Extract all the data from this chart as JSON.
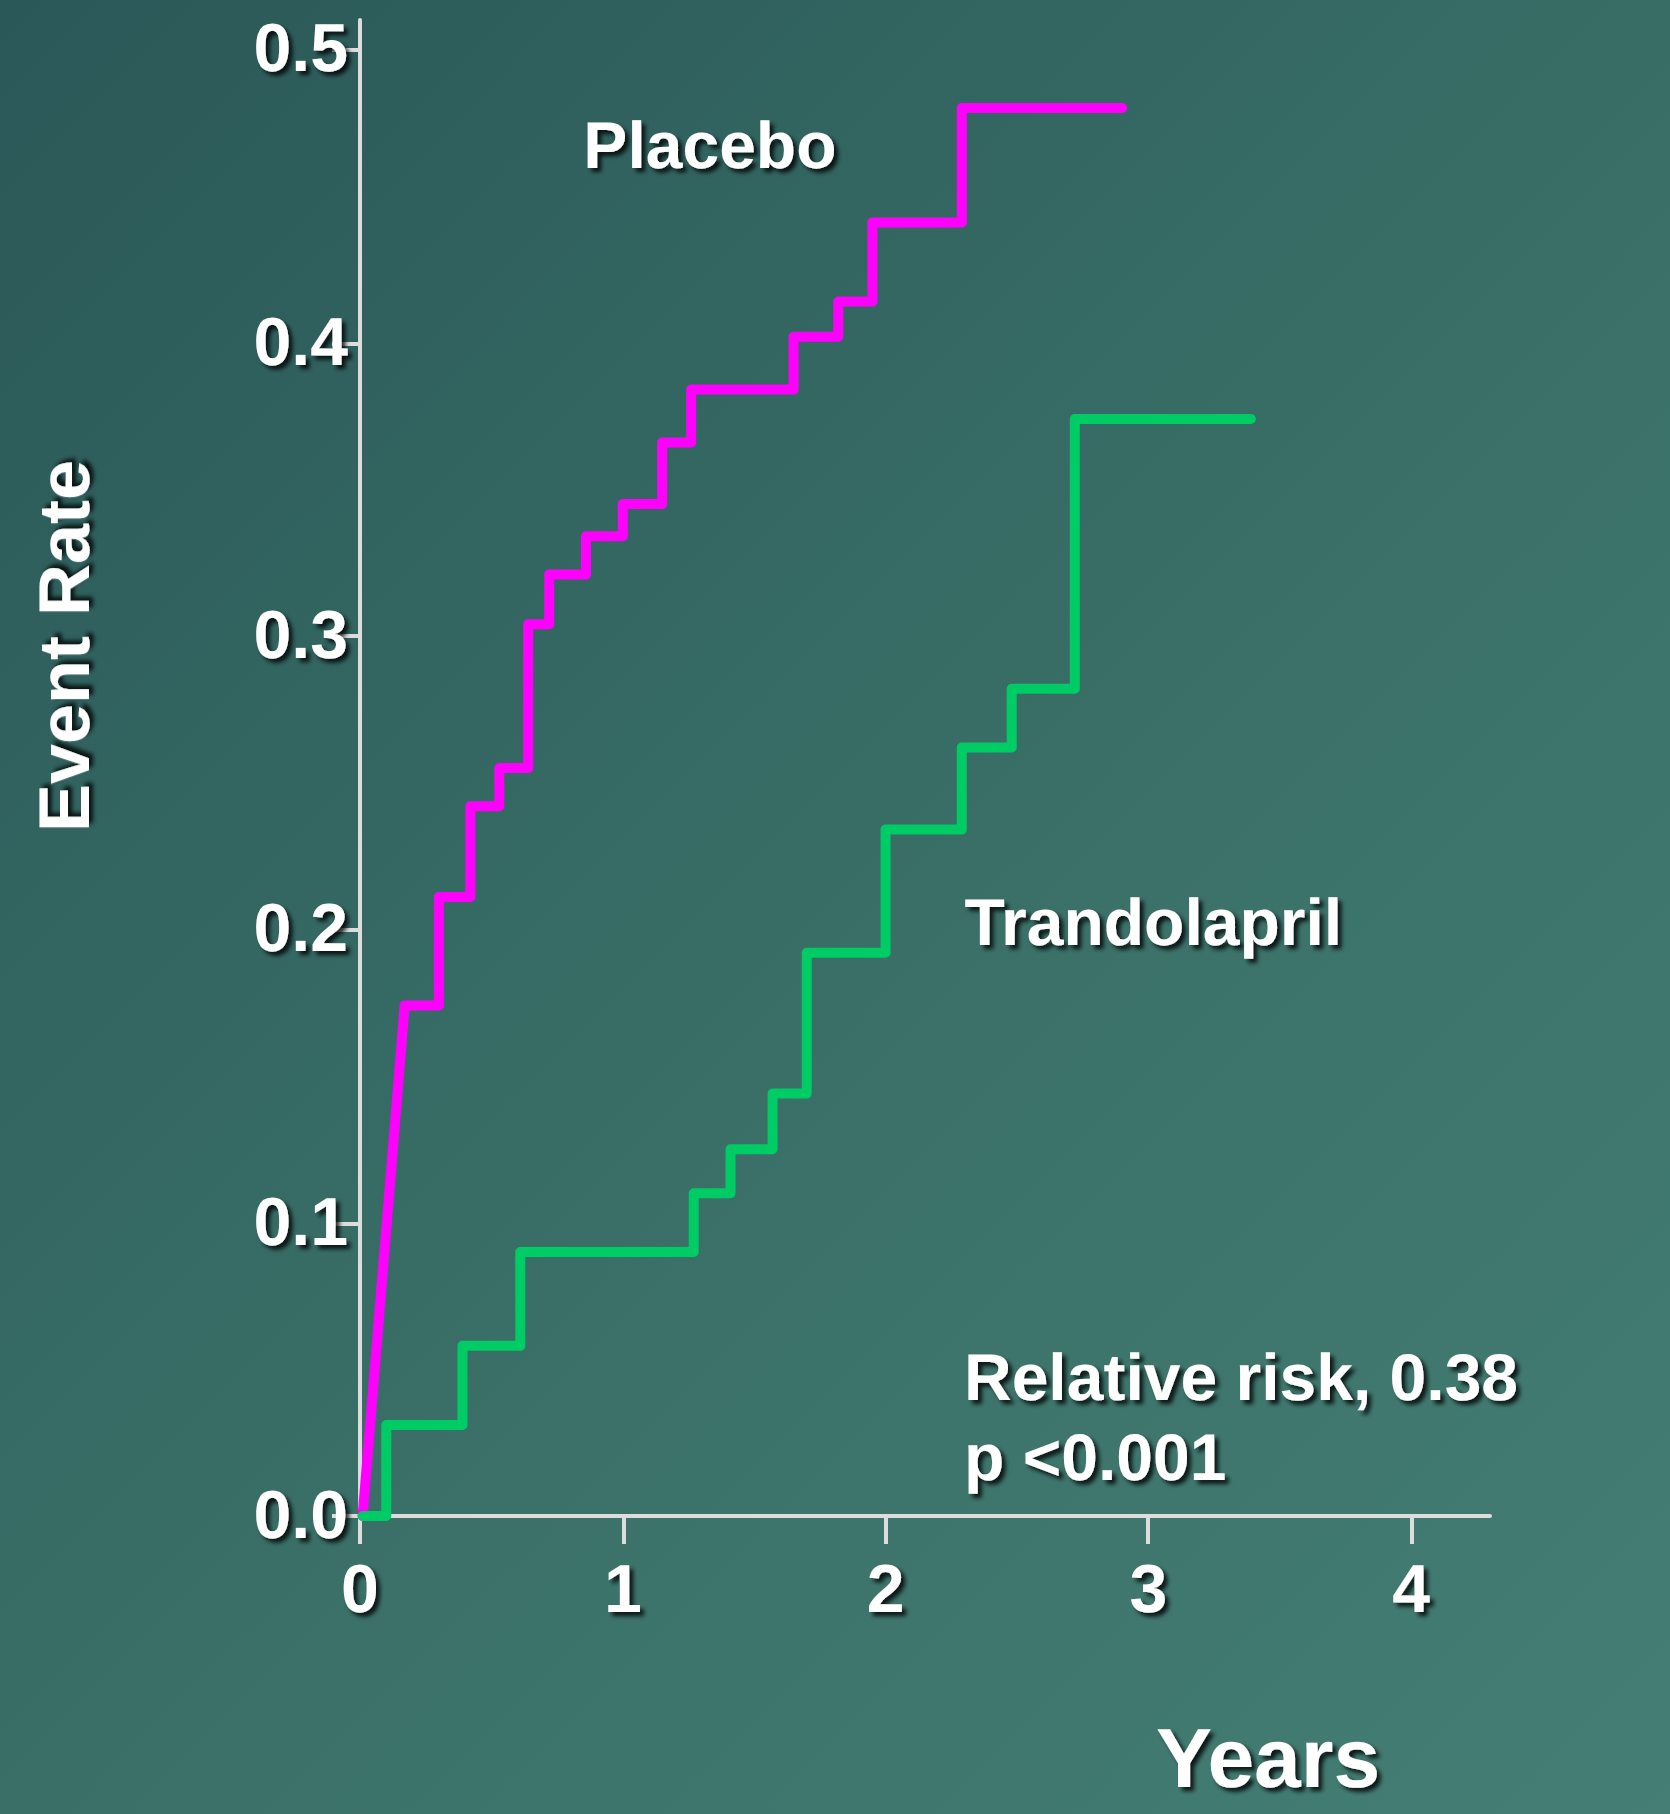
{
  "chart_data": {
    "type": "line",
    "xlabel": "Years",
    "ylabel": "Event Rate",
    "xlim": [
      0,
      4.3
    ],
    "ylim": [
      0,
      0.51
    ],
    "xticks": [
      0,
      1,
      2,
      3,
      4
    ],
    "yticks": [
      {
        "value": 0,
        "label": "0.0"
      },
      {
        "value": 0.1,
        "label": "0.1"
      },
      {
        "value": 0.2,
        "label": "0.2"
      },
      {
        "value": 0.3,
        "label": "0.3"
      },
      {
        "value": 0.4,
        "label": "0.4"
      },
      {
        "value": 0.5,
        "label": "0.5"
      }
    ],
    "grid": false,
    "legend": false,
    "marker": "none",
    "line_style": "solid",
    "series": [
      {
        "name": "Placebo",
        "color": "#ff00ff",
        "x": [
          0.01,
          0.17,
          0.3,
          0.3,
          0.42,
          0.42,
          0.53,
          0.53,
          0.64,
          0.64,
          0.72,
          0.72,
          0.86,
          0.86,
          1.0,
          1.0,
          1.15,
          1.15,
          1.26,
          1.26,
          1.65,
          1.65,
          1.82,
          1.82,
          1.95,
          1.95,
          2.29,
          2.29,
          2.9
        ],
        "values": [
          0,
          0.174,
          0.174,
          0.211,
          0.211,
          0.242,
          0.242,
          0.255,
          0.255,
          0.304,
          0.304,
          0.321,
          0.321,
          0.334,
          0.334,
          0.345,
          0.345,
          0.366,
          0.366,
          0.384,
          0.384,
          0.402,
          0.402,
          0.414,
          0.414,
          0.441,
          0.441,
          0.48,
          0.48
        ]
      },
      {
        "name": "Trandolapril",
        "color": "#00cc66",
        "x": [
          0.01,
          0.1,
          0.1,
          0.39,
          0.39,
          0.61,
          0.61,
          1.27,
          1.27,
          1.41,
          1.41,
          1.57,
          1.57,
          1.7,
          1.7,
          2.0,
          2.0,
          2.29,
          2.29,
          2.48,
          2.48,
          2.72,
          2.72,
          3.39
        ],
        "values": [
          0,
          0,
          0.031,
          0.031,
          0.058,
          0.058,
          0.09,
          0.09,
          0.11,
          0.11,
          0.125,
          0.125,
          0.144,
          0.144,
          0.192,
          0.192,
          0.234,
          0.234,
          0.262,
          0.262,
          0.282,
          0.282,
          0.374,
          0.374
        ]
      }
    ],
    "annotations": [
      "Relative risk, 0.38",
      "p <0.001"
    ]
  }
}
